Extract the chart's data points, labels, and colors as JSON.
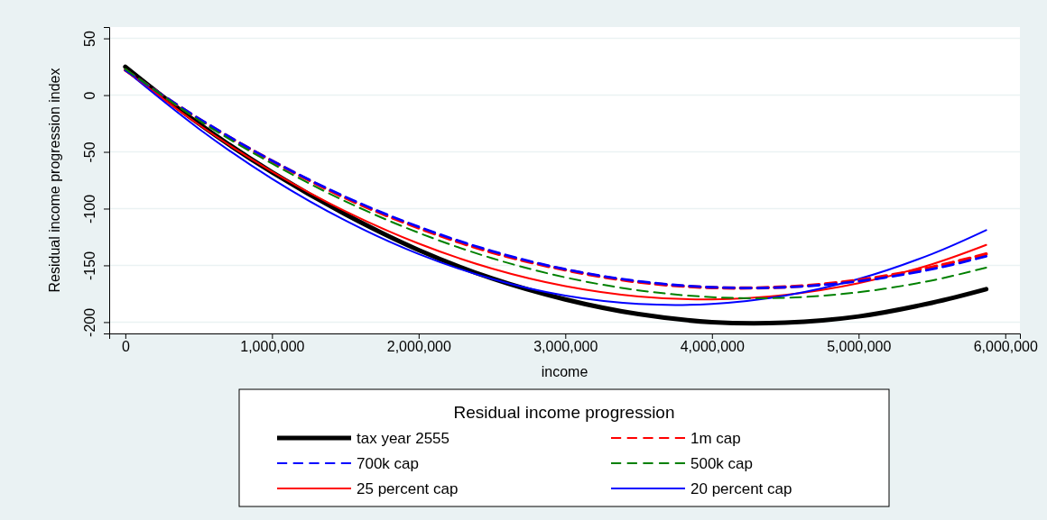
{
  "chart_data": {
    "type": "line",
    "xlabel": "income",
    "ylabel": "Residual income progression index",
    "legend_title": "Residual income progression",
    "legend": "bottom",
    "grid": "y",
    "marker": "none",
    "x": [
      0,
      500000,
      1000000,
      1500000,
      2000000,
      2500000,
      3000000,
      3500000,
      4000000,
      4500000,
      5000000,
      5500000,
      5870000
    ],
    "xlim": [
      -110000,
      6100000
    ],
    "xticks": [
      {
        "value": 0,
        "label": "0"
      },
      {
        "value": 1000000,
        "label": "1,000,000"
      },
      {
        "value": 2000000,
        "label": "2,000,000"
      },
      {
        "value": 3000000,
        "label": "3,000,000"
      },
      {
        "value": 4000000,
        "label": "4,000,000"
      },
      {
        "value": 5000000,
        "label": "5,000,000"
      },
      {
        "value": 6000000,
        "label": "6,000,000"
      }
    ],
    "ylim": [
      -210,
      60
    ],
    "yticks": [
      -200,
      -150,
      -100,
      -50,
      0,
      50
    ],
    "series": [
      {
        "name": "tax year 2555",
        "color": "#000000",
        "line_style": "solid",
        "values": [
          25,
          -25,
          -68,
          -105,
          -136.5,
          -161.5,
          -180,
          -193,
          -200,
          -200.5,
          -195,
          -183,
          -171
        ]
      },
      {
        "name": "1m cap",
        "color": "#ff0000",
        "line_style": "dashed",
        "values": [
          22,
          -21,
          -58,
          -90.5,
          -117,
          -138.5,
          -154,
          -164.7,
          -169.6,
          -169,
          -163,
          -151.6,
          -140
        ]
      },
      {
        "name": "700k cap",
        "color": "#0000ff",
        "line_style": "dashed",
        "values": [
          22,
          -20.5,
          -57.7,
          -89.6,
          -116,
          -137.4,
          -153.4,
          -164,
          -169.3,
          -169.3,
          -164,
          -153.4,
          -142
        ]
      },
      {
        "name": "500k cap",
        "color": "#008000",
        "line_style": "dashed",
        "values": [
          23,
          -22,
          -60.3,
          -93.5,
          -121.3,
          -143.7,
          -160.6,
          -172,
          -178,
          -178.6,
          -173.7,
          -163.3,
          -152
        ]
      },
      {
        "name": "25 percent cap",
        "color": "#ff0000",
        "line_style": "solid",
        "values": [
          22,
          -26,
          -67.3,
          -102.3,
          -130.8,
          -152.8,
          -168.3,
          -177.4,
          -180,
          -176,
          -165.7,
          -149,
          -132
        ]
      },
      {
        "name": "20 percent cap",
        "color": "#0000ff",
        "line_style": "solid",
        "values": [
          22,
          -29.5,
          -73.7,
          -110.5,
          -140,
          -162,
          -176.7,
          -184,
          -184,
          -176.7,
          -162,
          -140,
          -119
        ]
      }
    ]
  }
}
